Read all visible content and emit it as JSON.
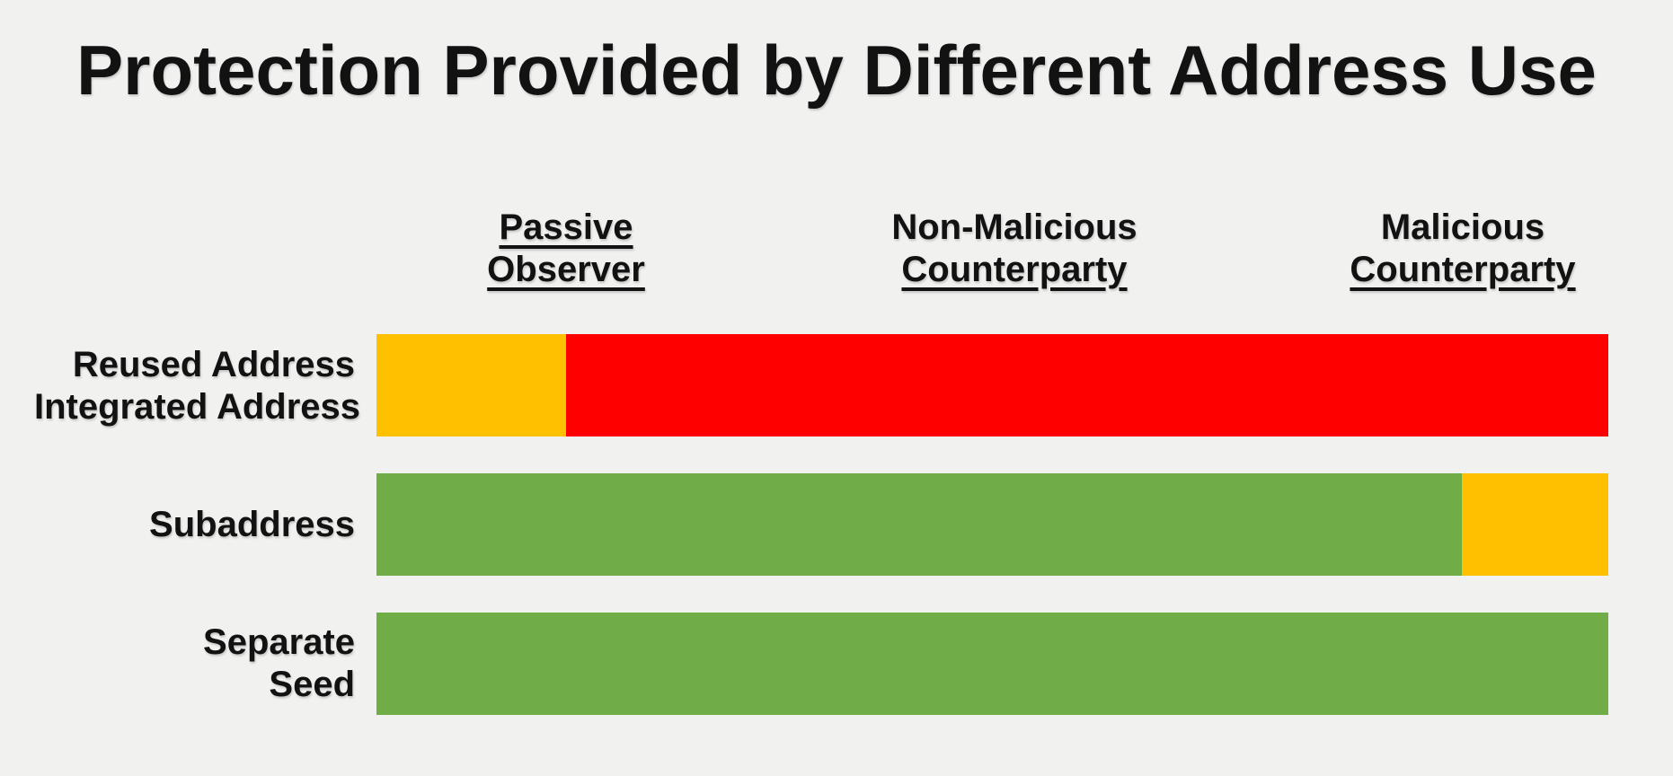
{
  "title": "Protection Provided by Different Address Use",
  "colors": {
    "background": "#F1F1EF",
    "text": "#121212",
    "green": "#70AD47",
    "yellow": "#FFC000",
    "red": "#FF0000"
  },
  "chart_data": {
    "type": "bar",
    "orientation": "horizontal",
    "title": "Protection Provided by Different Address Use",
    "axes": "none",
    "gridlines": "off",
    "legend": "none",
    "column_headers": [
      {
        "line1": "Passive",
        "line2": "Observer",
        "underline_line1": true,
        "underline_line2": true
      },
      {
        "line1": "Non-Malicious",
        "line2": "Counterparty",
        "underline_line1": false,
        "underline_line2": true
      },
      {
        "line1": "Malicious",
        "line2": "Counterparty",
        "underline_line1": false,
        "underline_line2": true
      }
    ],
    "rows": [
      {
        "label": "Reused Address Integrated Address",
        "label_lines": [
          "Reused Address",
          "Integrated Address"
        ],
        "segments": [
          {
            "color_name": "yellow",
            "color": "#FFC000",
            "fraction": 0.154
          },
          {
            "color_name": "red",
            "color": "#FF0000",
            "fraction": 0.846
          }
        ]
      },
      {
        "label": "Subaddress",
        "label_lines": [
          "Subaddress"
        ],
        "segments": [
          {
            "color_name": "green",
            "color": "#70AD47",
            "fraction": 0.881
          },
          {
            "color_name": "yellow",
            "color": "#FFC000",
            "fraction": 0.119
          }
        ]
      },
      {
        "label": "Separate Seed",
        "label_lines": [
          "Separate",
          "Seed"
        ],
        "segments": [
          {
            "color_name": "green",
            "color": "#70AD47",
            "fraction": 1.0
          }
        ]
      }
    ]
  }
}
